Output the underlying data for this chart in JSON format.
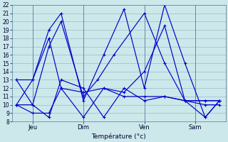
{
  "background_color": "#cce8ea",
  "line_color": "#0000cc",
  "grid_color": "#99bbcc",
  "xlabel": "Température (°c)",
  "ylim": [
    8,
    22
  ],
  "yticks": [
    8,
    9,
    10,
    11,
    12,
    13,
    14,
    15,
    16,
    17,
    18,
    19,
    20,
    21,
    22
  ],
  "xtick_labels": [
    "Jeu",
    "Dim",
    "Ven",
    "Sam"
  ],
  "xtick_positions": [
    1.0,
    3.5,
    6.5,
    9.0
  ],
  "xlim": [
    0,
    10.5
  ],
  "figsize": [
    3.2,
    2.0
  ],
  "dpi": 100,
  "series": [
    {
      "x": [
        0.2,
        1.0,
        1.8,
        2.4,
        3.5,
        4.2,
        5.0,
        6.5,
        7.5,
        8.5,
        9.5,
        10.2
      ],
      "y": [
        10,
        10,
        17,
        20,
        11,
        13,
        16,
        21,
        15,
        10.5,
        8.5,
        10.5
      ]
    },
    {
      "x": [
        0.2,
        1.0,
        1.8,
        2.4,
        3.5,
        4.5,
        5.5,
        6.5,
        7.5,
        8.5,
        9.5,
        10.2
      ],
      "y": [
        13,
        13,
        19,
        21,
        10.5,
        16,
        21.5,
        12,
        22,
        15,
        8.5,
        10.5
      ]
    },
    {
      "x": [
        0.2,
        1.0,
        1.8,
        2.4,
        3.5,
        4.5,
        5.5,
        6.5,
        7.5,
        8.5,
        9.5,
        10.2
      ],
      "y": [
        13,
        10,
        8.5,
        13,
        12,
        8.5,
        12,
        10.5,
        11,
        10.5,
        10.5,
        10.5
      ]
    },
    {
      "x": [
        0.2,
        1.0,
        1.8,
        2.4,
        3.5,
        4.5,
        5.5,
        6.5,
        7.5,
        8.5,
        9.5,
        10.2
      ],
      "y": [
        10,
        9,
        9,
        12,
        11.5,
        12,
        11,
        11,
        11,
        10.5,
        10,
        10
      ]
    },
    {
      "x": [
        0.2,
        1.0,
        1.8,
        2.4,
        3.5,
        4.5,
        5.5,
        6.5,
        7.5,
        8.5,
        9.5,
        10.2
      ],
      "y": [
        10,
        13,
        18,
        12,
        8.5,
        12,
        11.5,
        14,
        19.5,
        10.5,
        10.5,
        10.5
      ]
    }
  ]
}
